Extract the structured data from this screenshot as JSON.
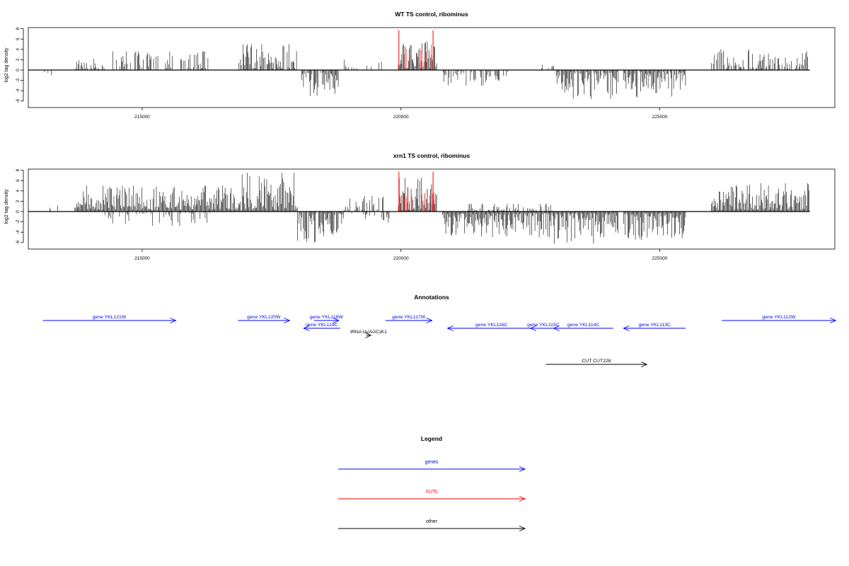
{
  "chart_data": [
    {
      "type": "bar",
      "title": "WT TS control, ribominus",
      "ylabel": "log2 tag density",
      "xlabel": "",
      "xlim": [
        212800,
        228000
      ],
      "ylim": [
        -6,
        8
      ],
      "xticks": [
        215000,
        220000,
        225000
      ],
      "xtick_labels": [
        "215000",
        "220000",
        "225000"
      ],
      "yticks": [
        -6,
        -4,
        -2,
        0,
        2,
        4,
        6,
        8
      ],
      "ytick_labels": [
        "-6",
        "-4",
        "-2",
        "0",
        "2",
        "4",
        "6",
        "8"
      ],
      "regions": [
        {
          "x0": 213000,
          "x1": 213250,
          "sign": -1,
          "max": 1.0,
          "density": 0.2
        },
        {
          "x0": 213700,
          "x1": 214300,
          "sign": 1,
          "max": 2.2,
          "density": 0.6
        },
        {
          "x0": 214400,
          "x1": 216300,
          "sign": 1,
          "max": 3.6,
          "density": 0.45
        },
        {
          "x0": 216850,
          "x1": 218000,
          "sign": 1,
          "max": 5.0,
          "density": 0.85
        },
        {
          "x0": 218050,
          "x1": 218800,
          "sign": -1,
          "max": 5.0,
          "density": 0.85
        },
        {
          "x0": 218900,
          "x1": 219700,
          "sign": 1,
          "max": 2.0,
          "density": 0.2
        },
        {
          "x0": 219950,
          "x1": 220700,
          "sign": 1,
          "max": 5.5,
          "density": 1.0
        },
        {
          "x0": 220800,
          "x1": 222100,
          "sign": -1,
          "max": 3.0,
          "density": 0.6
        },
        {
          "x0": 222700,
          "x1": 223000,
          "sign": 1,
          "max": 1.5,
          "density": 0.2
        },
        {
          "x0": 223000,
          "x1": 224200,
          "sign": -1,
          "max": 5.6,
          "density": 0.9
        },
        {
          "x0": 224300,
          "x1": 225500,
          "sign": -1,
          "max": 5.3,
          "density": 0.9
        },
        {
          "x0": 226000,
          "x1": 227900,
          "sign": 1,
          "max": 4.0,
          "density": 0.55
        }
      ],
      "spikes": [
        {
          "x": 219960,
          "y": 7.7
        },
        {
          "x": 220620,
          "y": 7.7
        }
      ],
      "colors": {
        "bars": "#000000",
        "spikes": "#ff0000",
        "baseline": "#000000"
      }
    },
    {
      "type": "bar",
      "title": "xrn1 TS control, ribominus",
      "ylabel": "log2 tag density",
      "xlabel": "",
      "xlim": [
        212800,
        228000
      ],
      "ylim": [
        -6,
        8
      ],
      "xticks": [
        215000,
        220000,
        225000
      ],
      "xtick_labels": [
        "215000",
        "220000",
        "225000"
      ],
      "yticks": [
        -6,
        -4,
        -2,
        0,
        2,
        4,
        6,
        8
      ],
      "ytick_labels": [
        "-6",
        "-4",
        "-2",
        "0",
        "2",
        "4",
        "6",
        "8"
      ],
      "regions": [
        {
          "x0": 213200,
          "x1": 213400,
          "sign": 1,
          "max": 1.5,
          "density": 0.3
        },
        {
          "x0": 213700,
          "x1": 216800,
          "sign": 1,
          "max": 5.0,
          "density": 1.0
        },
        {
          "x0": 214200,
          "x1": 216300,
          "sign": -1,
          "max": 2.8,
          "density": 0.3
        },
        {
          "x0": 216800,
          "x1": 218000,
          "sign": 1,
          "max": 7.5,
          "density": 1.0
        },
        {
          "x0": 218000,
          "x1": 218900,
          "sign": -1,
          "max": 6.0,
          "density": 0.9
        },
        {
          "x0": 218900,
          "x1": 219700,
          "sign": 1,
          "max": 3.0,
          "density": 0.4
        },
        {
          "x0": 219000,
          "x1": 219800,
          "sign": -1,
          "max": 2.5,
          "density": 0.2
        },
        {
          "x0": 219950,
          "x1": 220700,
          "sign": 1,
          "max": 6.5,
          "density": 1.0
        },
        {
          "x0": 220800,
          "x1": 222900,
          "sign": -1,
          "max": 5.0,
          "density": 1.0
        },
        {
          "x0": 221300,
          "x1": 222900,
          "sign": 1,
          "max": 1.5,
          "density": 0.4
        },
        {
          "x0": 222900,
          "x1": 224200,
          "sign": -1,
          "max": 6.2,
          "density": 1.0
        },
        {
          "x0": 224300,
          "x1": 225500,
          "sign": -1,
          "max": 5.5,
          "density": 1.0
        },
        {
          "x0": 226000,
          "x1": 227900,
          "sign": 1,
          "max": 5.5,
          "density": 1.0
        }
      ],
      "spikes": [
        {
          "x": 219960,
          "y": 7.7
        },
        {
          "x": 220620,
          "y": 7.7
        }
      ],
      "colors": {
        "bars": "#000000",
        "spikes": "#ff0000",
        "baseline": "#000000"
      }
    }
  ],
  "annotations": {
    "title": "Annotations",
    "features": [
      {
        "label": "gene YKL121W",
        "start": 213080,
        "end": 215650,
        "strand": "+",
        "row": 0,
        "color": "#0000ff"
      },
      {
        "label": "gene YKL120W",
        "start": 216850,
        "end": 217850,
        "strand": "+",
        "row": 0,
        "color": "#0000ff"
      },
      {
        "label": "gene YKL118W",
        "start": 218320,
        "end": 218800,
        "strand": "+",
        "row": 0,
        "color": "#0000ff"
      },
      {
        "label": "gene YKL117W",
        "start": 219700,
        "end": 220600,
        "strand": "+",
        "row": 0,
        "color": "#0000ff"
      },
      {
        "label": "gene YKL112W",
        "start": 226200,
        "end": 228400,
        "strand": "+",
        "row": 0,
        "color": "#0000ff"
      },
      {
        "label": "gene YKL119C",
        "start": 218120,
        "end": 218820,
        "strand": "-",
        "row": 1,
        "color": "#0000ff"
      },
      {
        "label": "gene YKL116C",
        "start": 220900,
        "end": 222600,
        "strand": "-",
        "row": 1,
        "color": "#0000ff"
      },
      {
        "label": "gene YKL115C",
        "start": 222500,
        "end": 223000,
        "strand": "-",
        "row": 1,
        "color": "#0000ff"
      },
      {
        "label": "gene YKL114C",
        "start": 222950,
        "end": 224100,
        "strand": "-",
        "row": 1,
        "color": "#0000ff"
      },
      {
        "label": "gene YKL113C",
        "start": 224300,
        "end": 225500,
        "strand": "-",
        "row": 1,
        "color": "#0000ff"
      },
      {
        "label": "tRNA tA(AGC)K1",
        "start": 219330,
        "end": 219420,
        "strand": "+",
        "row": 2,
        "color": "#000000"
      },
      {
        "label": "CUT CUT228",
        "start": 222800,
        "end": 224750,
        "strand": "+",
        "row": 3,
        "color": "#000000"
      }
    ]
  },
  "legend": {
    "title": "Legend",
    "items": [
      {
        "label": "genes",
        "color": "#0000ff"
      },
      {
        "label": "XUTs",
        "color": "#ff0000"
      },
      {
        "label": "other",
        "color": "#000000"
      }
    ]
  }
}
